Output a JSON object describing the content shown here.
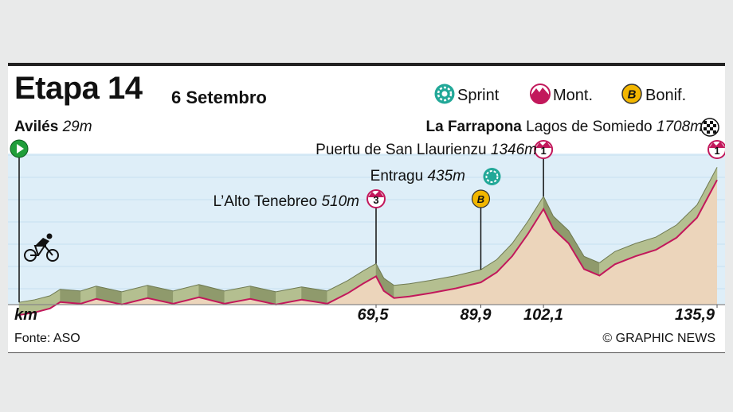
{
  "header": {
    "title": "Etapa 14",
    "date": "6 Setembro"
  },
  "legend": {
    "sprint": "Sprint",
    "mountain": "Mont.",
    "bonus": "Bonif.",
    "bonus_letter": "B"
  },
  "start": {
    "name": "Avilés",
    "altitude": "29m"
  },
  "finish": {
    "name": "La Farrapona",
    "place": "Lagos de Somiedo",
    "altitude": "1708m"
  },
  "climbs": [
    {
      "name": "Puertu de San Llaurienzu",
      "altitude": "1346m",
      "category": "1"
    },
    {
      "name": "Entragu",
      "altitude": "435m",
      "type": "sprint"
    },
    {
      "name": "L’Alto Tenebreo",
      "altitude": "510m",
      "category": "3"
    },
    {
      "finish_category": "1"
    }
  ],
  "axis": {
    "unit": "km",
    "marks": [
      "69,5",
      "89,9",
      "102,1",
      "135,9"
    ]
  },
  "footer": {
    "source": "Fonte: ASO",
    "credit": "© GRAPHIC NEWS"
  },
  "colors": {
    "ridge": "#a3ae7e",
    "face": "#ecd5bb",
    "line": "#c2185b",
    "sprint": "#22a898",
    "mountain": "#c2185b",
    "bonus": "#f2b600",
    "sky": "#deeef8"
  },
  "chart_data": {
    "type": "area",
    "x": [
      0,
      3,
      6,
      8,
      12,
      15,
      20,
      25,
      30,
      35,
      40,
      45,
      50,
      55,
      60,
      64,
      67,
      69.5,
      71,
      73,
      76,
      80,
      85,
      89.9,
      93,
      96,
      99,
      102.1,
      104,
      107,
      110,
      113,
      116,
      120,
      124,
      128,
      132,
      135.9
    ],
    "y": [
      29,
      60,
      110,
      190,
      170,
      230,
      160,
      240,
      170,
      250,
      170,
      230,
      160,
      220,
      170,
      300,
      420,
      510,
      330,
      240,
      260,
      300,
      360,
      435,
      560,
      760,
      1030,
      1346,
      1100,
      920,
      600,
      520,
      660,
      760,
      840,
      990,
      1240,
      1708
    ],
    "xlabel": "km",
    "x_marks": [
      69.5,
      89.9,
      102.1,
      135.9
    ],
    "xlim": [
      0,
      135.9
    ],
    "ylim": [
      0,
      1800
    ],
    "grid": true
  }
}
